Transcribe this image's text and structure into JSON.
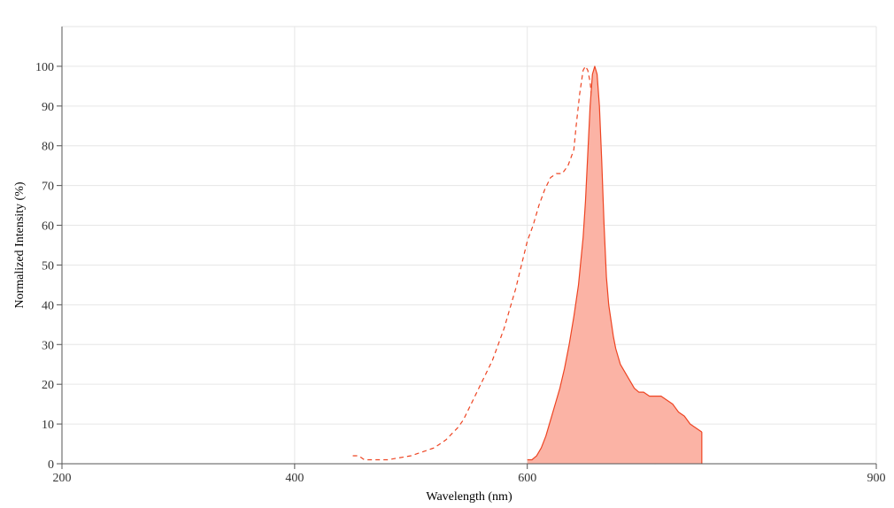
{
  "chart_data": {
    "type": "area",
    "xlabel": "Wavelength (nm)",
    "ylabel": "Normalized Intensity (%)",
    "xlim": [
      200,
      900
    ],
    "ylim": [
      0,
      110
    ],
    "x_ticks": [
      200,
      400,
      600,
      900
    ],
    "y_ticks": [
      0,
      10,
      20,
      30,
      40,
      50,
      60,
      70,
      80,
      90,
      100
    ],
    "grid": true,
    "legend": "none",
    "series": [
      {
        "style": "dashed",
        "color": "#ee4422",
        "fill": false,
        "x": [
          450,
          455,
          460,
          470,
          480,
          490,
          500,
          510,
          520,
          530,
          540,
          545,
          550,
          555,
          560,
          565,
          570,
          575,
          580,
          585,
          590,
          595,
          600,
          605,
          610,
          615,
          620,
          625,
          630,
          635,
          640,
          642,
          645,
          648,
          650,
          652,
          654,
          656,
          658,
          660,
          662,
          664,
          666,
          668,
          670,
          672,
          674,
          676,
          678,
          680,
          684,
          688,
          692,
          696,
          700,
          705,
          710
        ],
        "y": [
          2,
          2,
          1,
          1,
          1,
          1.5,
          2,
          3,
          4,
          6,
          9,
          11,
          14,
          17,
          20,
          23,
          26,
          30,
          34,
          39,
          44,
          50,
          56,
          60,
          65,
          69,
          72,
          73,
          73,
          75,
          79,
          85,
          93,
          99,
          100,
          99,
          96,
          90,
          80,
          68,
          56,
          46,
          38,
          31,
          25,
          20,
          16,
          13,
          11,
          9,
          6,
          4,
          2.5,
          1.5,
          1,
          0.5,
          0
        ]
      },
      {
        "style": "solid",
        "color": "#ee4422",
        "fill": true,
        "fill_color": "#fbb3a5",
        "x": [
          600,
          604,
          608,
          612,
          616,
          620,
          624,
          628,
          632,
          636,
          640,
          644,
          648,
          650,
          652,
          654,
          656,
          658,
          660,
          662,
          664,
          666,
          668,
          670,
          672,
          674,
          676,
          678,
          680,
          684,
          688,
          692,
          696,
          700,
          705,
          710,
          715,
          720,
          725,
          730,
          735,
          740,
          745,
          750
        ],
        "y": [
          1,
          1,
          2,
          4,
          7,
          11,
          15,
          19,
          24,
          30,
          37,
          45,
          57,
          66,
          78,
          90,
          98,
          100,
          98,
          90,
          76,
          60,
          47,
          40,
          36,
          32,
          29,
          27,
          25,
          23,
          21,
          19,
          18,
          18,
          17,
          17,
          17,
          16,
          15,
          13,
          12,
          10,
          9,
          8
        ]
      }
    ]
  }
}
